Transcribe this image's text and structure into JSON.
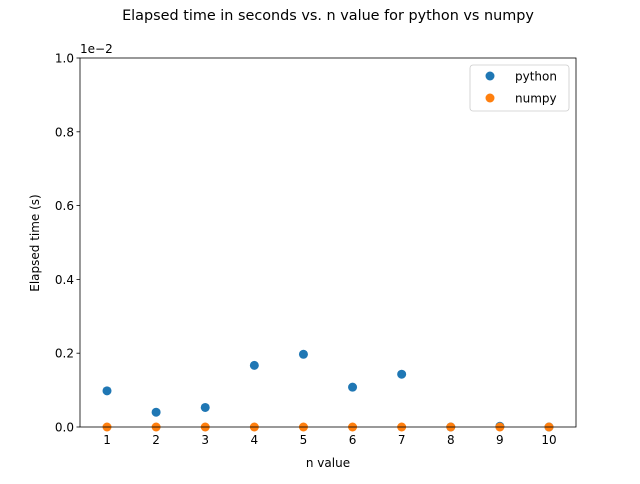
{
  "chart_data": {
    "type": "scatter",
    "title": "Elapsed time in seconds vs. n value for python vs numpy",
    "xlabel": "n value",
    "ylabel": "Elapsed time (s)",
    "y_offset_text": "1e−2",
    "x": [
      1,
      2,
      3,
      4,
      5,
      6,
      7,
      8,
      9,
      10
    ],
    "x_tick_labels": [
      "1",
      "2",
      "3",
      "4",
      "5",
      "6",
      "7",
      "8",
      "9",
      "10"
    ],
    "y_ticks": [
      0,
      0.002,
      0.004,
      0.006,
      0.008,
      0.01
    ],
    "y_tick_labels": [
      "0.0",
      "0.2",
      "0.4",
      "0.6",
      "0.8",
      "1.0"
    ],
    "xlim": [
      0.45,
      10.55
    ],
    "ylim": [
      0,
      0.01
    ],
    "grid": false,
    "legend_position": "top-right",
    "series": [
      {
        "name": "python",
        "color": "#1f77b4",
        "values": [
          0.00098,
          0.0004,
          0.00053,
          0.00167,
          0.00197,
          0.00108,
          0.00143,
          0.0,
          2e-05,
          0.0
        ]
      },
      {
        "name": "numpy",
        "color": "#ff7f0e",
        "values": [
          0.0,
          0.0,
          0.0,
          0.0,
          0.0,
          0.0,
          0.0,
          0.0,
          0.0,
          0.0
        ]
      }
    ]
  }
}
